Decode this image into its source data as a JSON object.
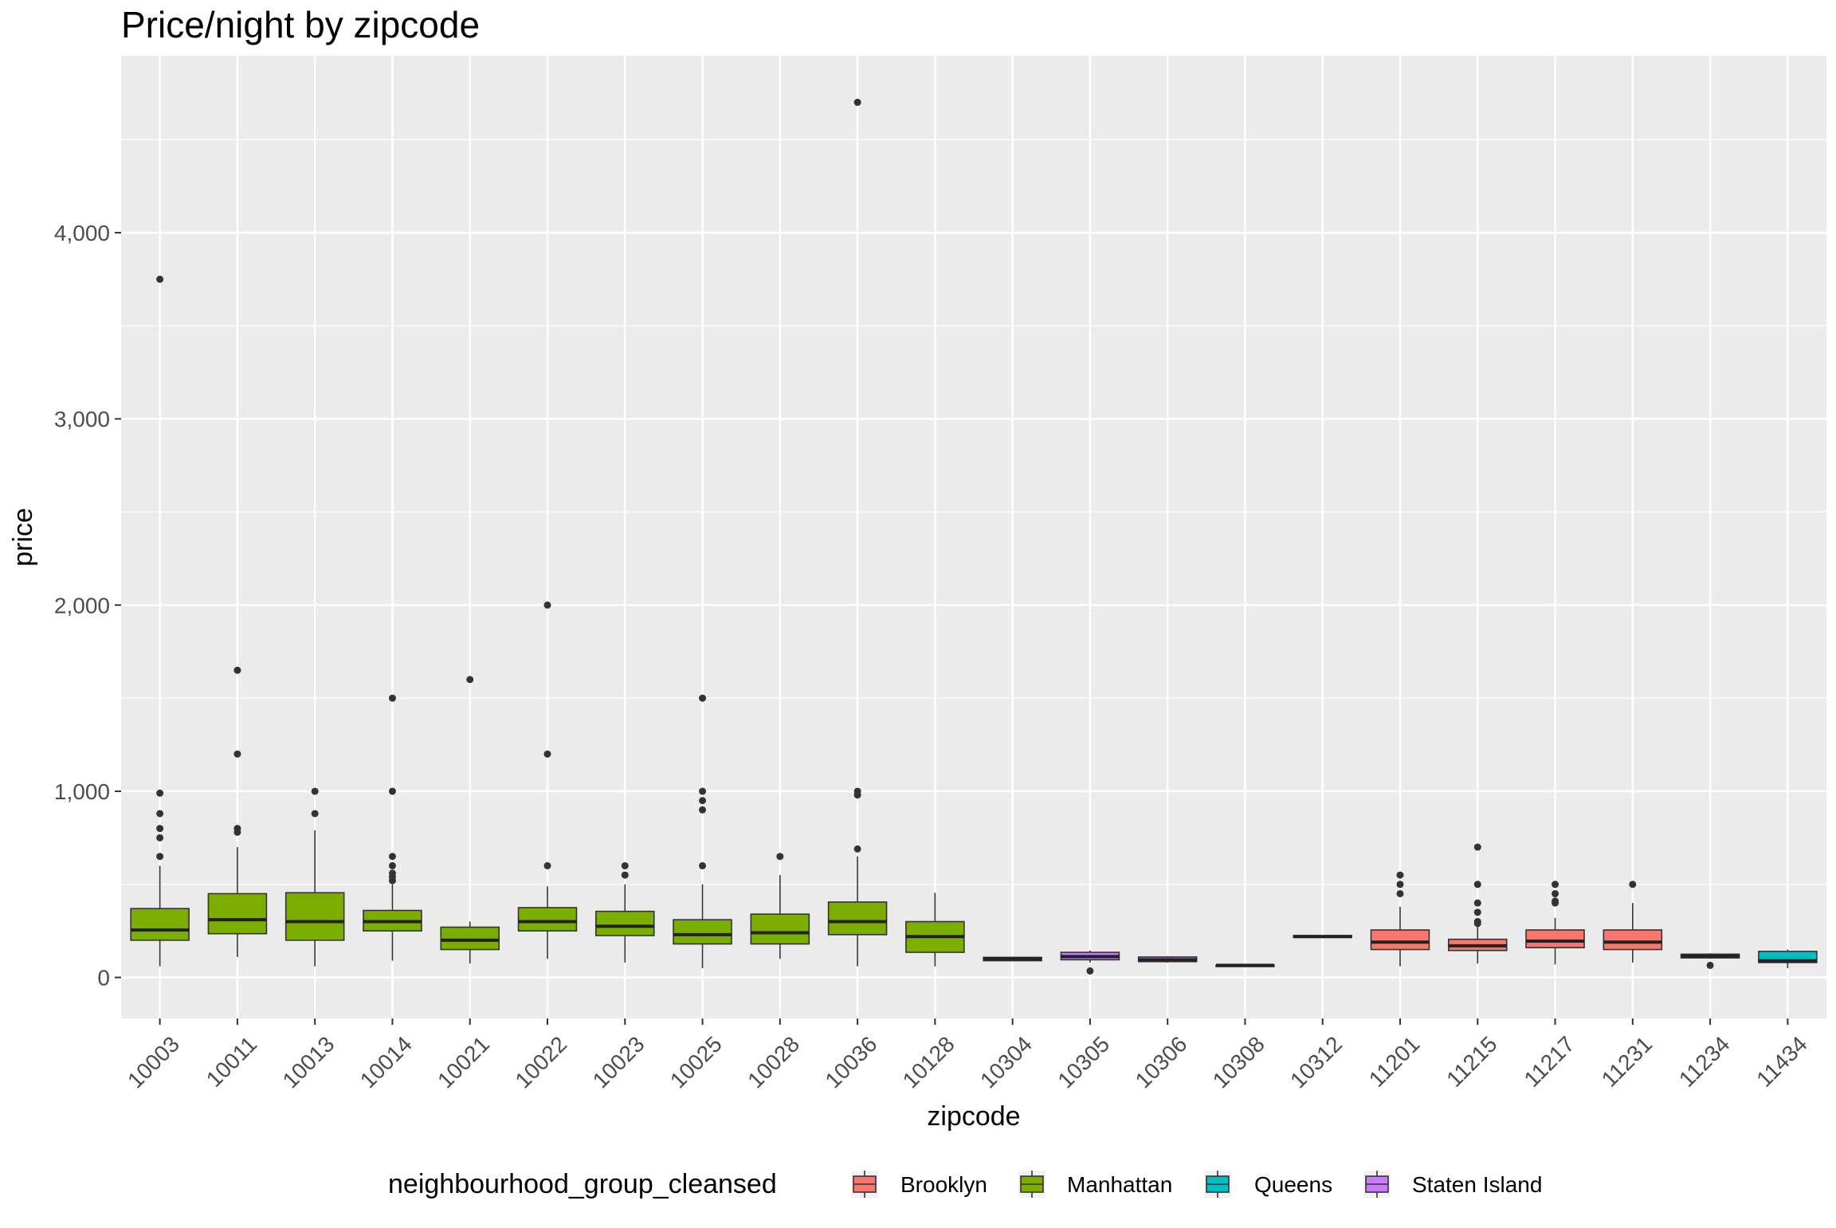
{
  "chart_data": {
    "type": "boxplot",
    "title": "Price/night by zipcode",
    "xlabel": "zipcode",
    "ylabel": "price",
    "ylim": [
      -220,
      4950
    ],
    "y_ticks": [
      0,
      1000,
      2000,
      3000,
      4000
    ],
    "y_tick_labels": [
      "0",
      "1,000",
      "2,000",
      "3,000",
      "4,000"
    ],
    "grid": true,
    "background": "#EBEBEB",
    "legend": {
      "title": "neighbourhood_group_cleansed",
      "position": "bottom",
      "entries": [
        {
          "name": "Brooklyn",
          "color": "#F8766D"
        },
        {
          "name": "Manhattan",
          "color": "#7CAE00"
        },
        {
          "name": "Queens",
          "color": "#00BFC4"
        },
        {
          "name": "Staten Island",
          "color": "#C77CFF"
        }
      ]
    },
    "categories": [
      "10003",
      "10011",
      "10013",
      "10014",
      "10021",
      "10022",
      "10023",
      "10025",
      "10028",
      "10036",
      "10128",
      "10304",
      "10305",
      "10306",
      "10308",
      "10312",
      "11201",
      "11215",
      "11217",
      "11231",
      "11234",
      "11434"
    ],
    "boxes": [
      {
        "zipcode": "10003",
        "group": "Manhattan",
        "lower_whisker": 60,
        "q1": 200,
        "median": 255,
        "q3": 370,
        "upper_whisker": 600,
        "outliers": [
          650,
          750,
          800,
          880,
          990,
          3750
        ]
      },
      {
        "zipcode": "10011",
        "group": "Manhattan",
        "lower_whisker": 110,
        "q1": 235,
        "median": 310,
        "q3": 450,
        "upper_whisker": 700,
        "outliers": [
          780,
          800,
          1200,
          1650
        ]
      },
      {
        "zipcode": "10013",
        "group": "Manhattan",
        "lower_whisker": 60,
        "q1": 200,
        "median": 300,
        "q3": 455,
        "upper_whisker": 790,
        "outliers": [
          880,
          1000
        ]
      },
      {
        "zipcode": "10014",
        "group": "Manhattan",
        "lower_whisker": 90,
        "q1": 250,
        "median": 300,
        "q3": 360,
        "upper_whisker": 500,
        "outliers": [
          520,
          540,
          560,
          600,
          650,
          1000,
          1500
        ]
      },
      {
        "zipcode": "10021",
        "group": "Manhattan",
        "lower_whisker": 75,
        "q1": 150,
        "median": 200,
        "q3": 270,
        "upper_whisker": 300,
        "outliers": [
          1600
        ]
      },
      {
        "zipcode": "10022",
        "group": "Manhattan",
        "lower_whisker": 100,
        "q1": 250,
        "median": 300,
        "q3": 375,
        "upper_whisker": 490,
        "outliers": [
          600,
          1200,
          2000
        ]
      },
      {
        "zipcode": "10023",
        "group": "Manhattan",
        "lower_whisker": 80,
        "q1": 225,
        "median": 275,
        "q3": 355,
        "upper_whisker": 500,
        "outliers": [
          550,
          600
        ]
      },
      {
        "zipcode": "10025",
        "group": "Manhattan",
        "lower_whisker": 50,
        "q1": 180,
        "median": 230,
        "q3": 310,
        "upper_whisker": 500,
        "outliers": [
          600,
          900,
          950,
          1000,
          1500
        ]
      },
      {
        "zipcode": "10028",
        "group": "Manhattan",
        "lower_whisker": 100,
        "q1": 180,
        "median": 240,
        "q3": 340,
        "upper_whisker": 550,
        "outliers": [
          650
        ]
      },
      {
        "zipcode": "10036",
        "group": "Manhattan",
        "lower_whisker": 60,
        "q1": 230,
        "median": 300,
        "q3": 405,
        "upper_whisker": 650,
        "outliers": [
          690,
          980,
          1000,
          4700
        ]
      },
      {
        "zipcode": "10128",
        "group": "Manhattan",
        "lower_whisker": 60,
        "q1": 135,
        "median": 220,
        "q3": 300,
        "upper_whisker": 455,
        "outliers": []
      },
      {
        "zipcode": "10304",
        "group": "Staten Island",
        "lower_whisker": 90,
        "q1": 90,
        "median": 100,
        "q3": 108,
        "upper_whisker": 110,
        "outliers": []
      },
      {
        "zipcode": "10305",
        "group": "Staten Island",
        "lower_whisker": 80,
        "q1": 95,
        "median": 112,
        "q3": 135,
        "upper_whisker": 145,
        "outliers": [
          35
        ]
      },
      {
        "zipcode": "10306",
        "group": "Staten Island",
        "lower_whisker": 80,
        "q1": 85,
        "median": 95,
        "q3": 110,
        "upper_whisker": 115,
        "outliers": []
      },
      {
        "zipcode": "10308",
        "group": "Staten Island",
        "lower_whisker": 65,
        "q1": 65,
        "median": 65,
        "q3": 65,
        "upper_whisker": 65,
        "outliers": []
      },
      {
        "zipcode": "10312",
        "group": "Staten Island",
        "lower_whisker": 215,
        "q1": 215,
        "median": 220,
        "q3": 225,
        "upper_whisker": 225,
        "outliers": []
      },
      {
        "zipcode": "11201",
        "group": "Brooklyn",
        "lower_whisker": 60,
        "q1": 150,
        "median": 190,
        "q3": 255,
        "upper_whisker": 380,
        "outliers": [
          450,
          500,
          550
        ]
      },
      {
        "zipcode": "11215",
        "group": "Brooklyn",
        "lower_whisker": 75,
        "q1": 145,
        "median": 170,
        "q3": 205,
        "upper_whisker": 280,
        "outliers": [
          290,
          300,
          350,
          400,
          500,
          700
        ]
      },
      {
        "zipcode": "11217",
        "group": "Brooklyn",
        "lower_whisker": 70,
        "q1": 160,
        "median": 195,
        "q3": 255,
        "upper_whisker": 320,
        "outliers": [
          400,
          410,
          450,
          500
        ]
      },
      {
        "zipcode": "11231",
        "group": "Brooklyn",
        "lower_whisker": 80,
        "q1": 150,
        "median": 190,
        "q3": 255,
        "upper_whisker": 400,
        "outliers": [
          500
        ]
      },
      {
        "zipcode": "11234",
        "group": "Brooklyn",
        "lower_whisker": 100,
        "q1": 105,
        "median": 115,
        "q3": 125,
        "upper_whisker": 130,
        "outliers": [
          65
        ]
      },
      {
        "zipcode": "11434",
        "group": "Queens",
        "lower_whisker": 50,
        "q1": 80,
        "median": 90,
        "q3": 140,
        "upper_whisker": 150,
        "outliers": []
      }
    ]
  }
}
